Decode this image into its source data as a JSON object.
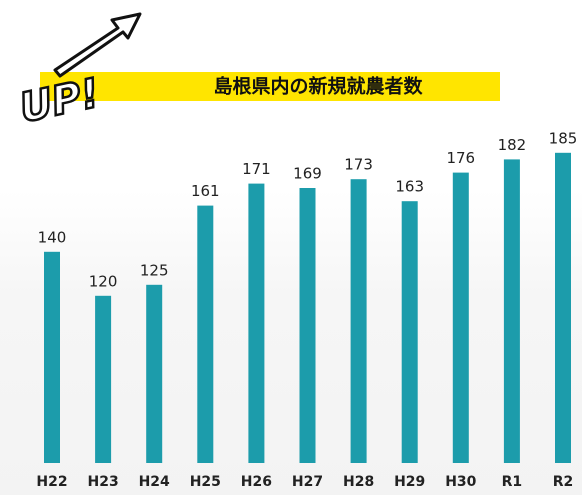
{
  "chart_data": {
    "type": "bar",
    "title": "島根県内の新規就農者数",
    "badge": "UP!",
    "categories": [
      "H22",
      "H23",
      "H24",
      "H25",
      "H26",
      "H27",
      "H28",
      "H29",
      "H30",
      "R1",
      "R2"
    ],
    "values": [
      140,
      120,
      125,
      161,
      171,
      169,
      173,
      163,
      176,
      182,
      185
    ],
    "color": "#1c9cab",
    "ylim": [
      44,
      188
    ]
  }
}
